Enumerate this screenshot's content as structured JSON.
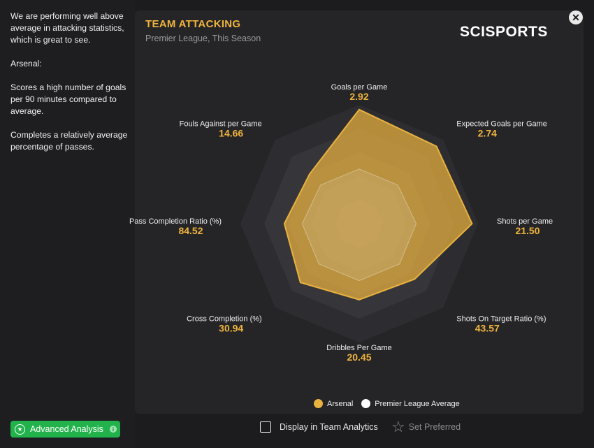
{
  "sidebar": {
    "paragraphs": [
      "We are performing well above average in attacking statistics, which is great to see.",
      "Arsenal:",
      "Scores a high number of goals per 90 minutes compared to average.",
      "Completes a relatively average percentage of passes."
    ]
  },
  "panel": {
    "title": "TEAM ATTACKING",
    "subtitle": "Premier League, This Season",
    "logo_text": "SCISPORTS",
    "close_icon": "close-icon"
  },
  "chart_data": {
    "type": "radar",
    "axes": [
      {
        "label": "Goals per Game",
        "value": "2.92"
      },
      {
        "label": "Expected Goals per Game",
        "value": "2.74"
      },
      {
        "label": "Shots per Game",
        "value": "21.50"
      },
      {
        "label": "Shots On Target Ratio (%)",
        "value": "43.57"
      },
      {
        "label": "Dribbles Per Game",
        "value": "20.45"
      },
      {
        "label": "Cross Completion (%)",
        "value": "30.94"
      },
      {
        "label": "Pass Completion Ratio (%)",
        "value": "84.52"
      },
      {
        "label": "Fouls Against per Game",
        "value": "14.66"
      }
    ],
    "series": [
      {
        "name": "Arsenal",
        "color": "#e9b23e",
        "values": [
          0.96,
          0.92,
          0.95,
          0.66,
          0.64,
          0.7,
          0.63,
          0.59
        ]
      },
      {
        "name": "Premier League Average",
        "color": "#ffffff",
        "values": [
          0.46,
          0.46,
          0.48,
          0.48,
          0.48,
          0.48,
          0.48,
          0.46
        ]
      }
    ],
    "grid_levels": 5,
    "legend": "bottom-center"
  },
  "legend": {
    "items": [
      {
        "label": "Arsenal",
        "color": "#e9b23e"
      },
      {
        "label": "Premier League Average",
        "color": "#ffffff"
      }
    ]
  },
  "footer": {
    "advanced_label": "Advanced Analysis",
    "display_label": "Display in Team Analytics",
    "preferred_label": "Set Preferred"
  }
}
